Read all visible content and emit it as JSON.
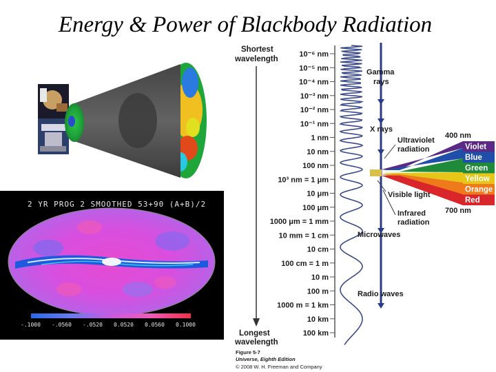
{
  "slide": {
    "title": "Energy & Power of Blackbody Radiation"
  },
  "spectrum": {
    "top_label_1": "Shortest",
    "top_label_2": "wavelength",
    "bottom_label_1": "Longest",
    "bottom_label_2": "wavelength",
    "wavelengths": [
      "10⁻⁶ nm",
      "10⁻⁵ nm",
      "10⁻⁴ nm",
      "10⁻³ nm",
      "10⁻² nm",
      "10⁻¹ nm",
      "1 nm",
      "10 nm",
      "100 nm",
      "10³ nm = 1 μm",
      "10 μm",
      "100 μm",
      "1000 μm = 1 mm",
      "10 mm = 1 cm",
      "10 cm",
      "100 cm = 1 m",
      "10 m",
      "100 m",
      "1000 m = 1 km",
      "10 km",
      "100 km"
    ],
    "bands": {
      "gamma_1": "Gamma",
      "gamma_2": "rays",
      "xray": "X rays",
      "uv_1": "Ultraviolet",
      "uv_2": "radiation",
      "visible": "Visible light",
      "ir_1": "Infrared",
      "ir_2": "radiation",
      "micro": "Microwaves",
      "radio": "Radio waves"
    },
    "visible_range": {
      "top": "400 nm",
      "bottom": "700 nm",
      "colors": [
        {
          "name": "Violet",
          "hex": "#5b2a86"
        },
        {
          "name": "Blue",
          "hex": "#1f4fa8"
        },
        {
          "name": "Green",
          "hex": "#1f8a3a"
        },
        {
          "name": "Yellow",
          "hex": "#e6c619"
        },
        {
          "name": "Orange",
          "hex": "#ee7a1c"
        },
        {
          "name": "Red",
          "hex": "#d8262b"
        }
      ]
    },
    "credit": {
      "fig": "Figure 5-7",
      "book": "Universe, Eighth Edition",
      "copy": "© 2008 W. H. Freeman and Company"
    }
  },
  "cmb_map": {
    "title": "2 YR PROG 2 SMOOTHED 53+90 (A+B)/2",
    "ticks": [
      "-.1000",
      "-.0560",
      "-.0520",
      "0.0520",
      "0.0560",
      "0.1000"
    ]
  },
  "colors": {
    "spectrum_line": "#3a4a8a",
    "map_background": "#000000"
  }
}
